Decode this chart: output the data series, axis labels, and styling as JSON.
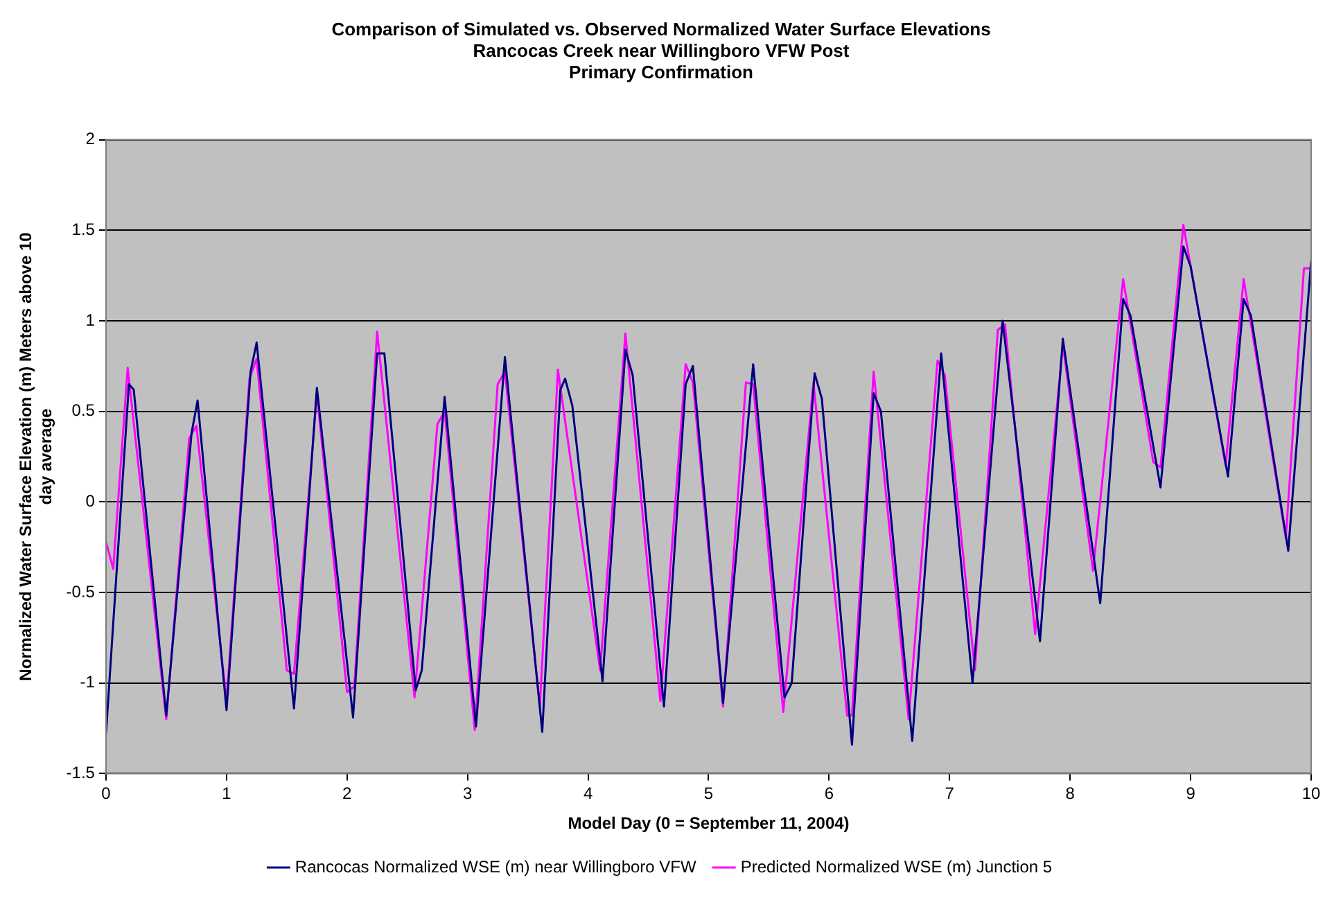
{
  "chart_data": {
    "type": "line",
    "title": "Comparison of Simulated vs. Observed Normalized Water Surface Elevations\nRancocas Creek near Willingboro VFW Post\nPrimary Confirmation",
    "xlabel": "Model Day (0 = September 11, 2004)",
    "ylabel": "Normalized Water Surface Elevation (m) Meters above 10 day average",
    "xlim": [
      0,
      10
    ],
    "xticks": [
      0,
      1,
      2,
      3,
      4,
      5,
      6,
      7,
      8,
      9,
      10
    ],
    "ylim": [
      -1.5,
      2
    ],
    "yticks": [
      -1.5,
      -1,
      -0.5,
      0,
      0.5,
      1,
      1.5,
      2
    ],
    "grid": "y",
    "legend": "bottom",
    "marker": "none",
    "line_style": "solid",
    "series": [
      {
        "name": "Rancocas Normalized WSE (m) near Willingboro VFW",
        "color": "#000080",
        "x": [
          0,
          0.19,
          0.23,
          0.5,
          0.71,
          0.76,
          1.0,
          1.2,
          1.25,
          1.56,
          1.75,
          2.05,
          2.25,
          2.31,
          2.57,
          2.62,
          2.81,
          3.07,
          3.31,
          3.62,
          3.77,
          3.81,
          3.87,
          4.12,
          4.31,
          4.37,
          4.63,
          4.81,
          4.87,
          5.12,
          5.37,
          5.63,
          5.69,
          5.88,
          5.94,
          6.19,
          6.37,
          6.43,
          6.69,
          6.93,
          7.19,
          7.44,
          7.75,
          7.94,
          8.25,
          8.44,
          8.5,
          8.75,
          8.94,
          9.0,
          9.31,
          9.44,
          9.5,
          9.81,
          10
        ],
        "values": [
          -1.28,
          0.65,
          0.62,
          -1.18,
          0.38,
          0.56,
          -1.15,
          0.72,
          0.88,
          -1.14,
          0.63,
          -1.19,
          0.82,
          0.82,
          -1.04,
          -0.93,
          0.58,
          -1.24,
          0.8,
          -1.27,
          0.62,
          0.68,
          0.53,
          -0.99,
          0.84,
          0.7,
          -1.13,
          0.65,
          0.75,
          -1.11,
          0.76,
          -1.08,
          -1.0,
          0.71,
          0.57,
          -1.34,
          0.6,
          0.5,
          -1.32,
          0.82,
          -1.0,
          1.0,
          -0.77,
          0.9,
          -0.56,
          1.12,
          1.03,
          0.08,
          1.41,
          1.3,
          0.14,
          1.12,
          1.03,
          -0.27,
          1.33
        ]
      },
      {
        "name": "Predicted Normalized WSE (m) Junction 5",
        "color": "#ff00ff",
        "x": [
          0,
          0.06,
          0.18,
          0.5,
          0.69,
          0.75,
          1.0,
          1.19,
          1.25,
          1.5,
          1.56,
          1.75,
          2.0,
          2.06,
          2.25,
          2.56,
          2.75,
          2.81,
          3.06,
          3.25,
          3.31,
          3.6,
          3.75,
          4.1,
          4.31,
          4.6,
          4.81,
          4.87,
          5.12,
          5.31,
          5.37,
          5.62,
          5.87,
          6.15,
          6.19,
          6.37,
          6.66,
          6.9,
          6.96,
          7.21,
          7.4,
          7.46,
          7.71,
          7.94,
          8.19,
          8.44,
          8.69,
          8.75,
          8.94,
          9.29,
          9.44,
          9.79,
          9.94,
          10
        ],
        "values": [
          -0.22,
          -0.37,
          0.74,
          -1.2,
          0.35,
          0.42,
          -1.1,
          0.68,
          0.79,
          -0.93,
          -0.95,
          0.6,
          -1.05,
          -1.02,
          0.94,
          -1.08,
          0.43,
          0.5,
          -1.26,
          0.65,
          0.72,
          -1.13,
          0.73,
          -0.93,
          0.93,
          -1.1,
          0.76,
          0.66,
          -1.13,
          0.66,
          0.65,
          -1.16,
          0.66,
          -1.18,
          -1.18,
          0.72,
          -1.2,
          0.78,
          0.7,
          -0.93,
          0.95,
          0.98,
          -0.73,
          0.87,
          -0.38,
          1.23,
          0.22,
          0.19,
          1.53,
          0.2,
          1.23,
          -0.2,
          1.29,
          1.29
        ]
      }
    ]
  }
}
